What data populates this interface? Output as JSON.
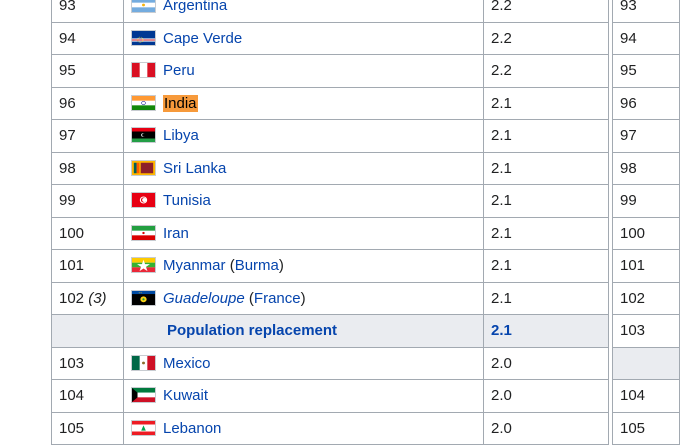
{
  "rows": [
    {
      "rank": "93",
      "country": "Argentina",
      "flag": "argentina-flag",
      "value": "2.2",
      "rank2": "93"
    },
    {
      "rank": "94",
      "country": "Cape Verde",
      "flag": "cape-verde-flag",
      "value": "2.2",
      "rank2": "94"
    },
    {
      "rank": "95",
      "country": "Peru",
      "flag": "peru-flag",
      "value": "2.2",
      "rank2": "95"
    },
    {
      "rank": "96",
      "country": "India",
      "flag": "india-flag",
      "value": "2.1",
      "rank2": "96"
    },
    {
      "rank": "97",
      "country": "Libya",
      "flag": "libya-flag",
      "value": "2.1",
      "rank2": "97"
    },
    {
      "rank": "98",
      "country": "Sri Lanka",
      "flag": "sri-lanka-flag",
      "value": "2.1",
      "rank2": "98"
    },
    {
      "rank": "99",
      "country": "Tunisia",
      "flag": "tunisia-flag",
      "value": "2.1",
      "rank2": "99"
    },
    {
      "rank": "100",
      "country": "Iran",
      "flag": "iran-flag",
      "value": "2.1",
      "rank2": "100"
    },
    {
      "rank": "101",
      "country": "Myanmar",
      "country_note": "Burma",
      "flag": "myanmar-flag",
      "value": "2.1",
      "rank2": "101"
    },
    {
      "rank": "102",
      "rank_note": "(3)",
      "country": "Guadeloupe",
      "country_note": "France",
      "flag": "guadeloupe-flag",
      "value": "2.1",
      "rank2": "102"
    },
    {
      "replacement": true,
      "label": "Population replacement",
      "value": "2.1",
      "rank2": "103"
    },
    {
      "rank": "103",
      "country": "Mexico",
      "flag": "mexico-flag",
      "value": "2.0",
      "rank2": ""
    },
    {
      "rank": "104",
      "country": "Kuwait",
      "flag": "kuwait-flag",
      "value": "2.0",
      "rank2": "104"
    },
    {
      "rank": "105",
      "country": "Lebanon",
      "flag": "lebanon-flag",
      "value": "2.0",
      "rank2": "105"
    }
  ],
  "colors": {
    "link": "#0645ad",
    "highlight": "#f79a3b",
    "border": "#a2a9b1",
    "replacement_row_bg": "#eaecf0"
  }
}
